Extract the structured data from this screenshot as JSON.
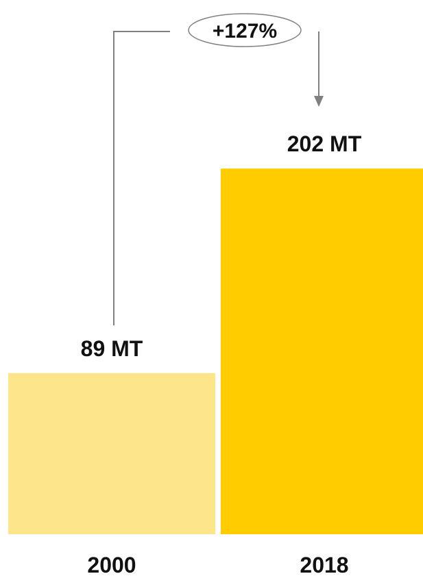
{
  "chart_data": {
    "type": "bar",
    "categories": [
      "2000",
      "2018"
    ],
    "values": [
      89,
      202
    ],
    "value_labels": [
      "89 MT",
      "202 MT"
    ],
    "bar_colors": [
      "#FDE68A",
      "#FFCC00"
    ],
    "change_label": "+127%",
    "ylim": [
      0,
      210
    ],
    "grid": false,
    "title": "",
    "xlabel": "",
    "ylabel": ""
  },
  "colors": {
    "connector": "#808080",
    "text": "#111111"
  }
}
